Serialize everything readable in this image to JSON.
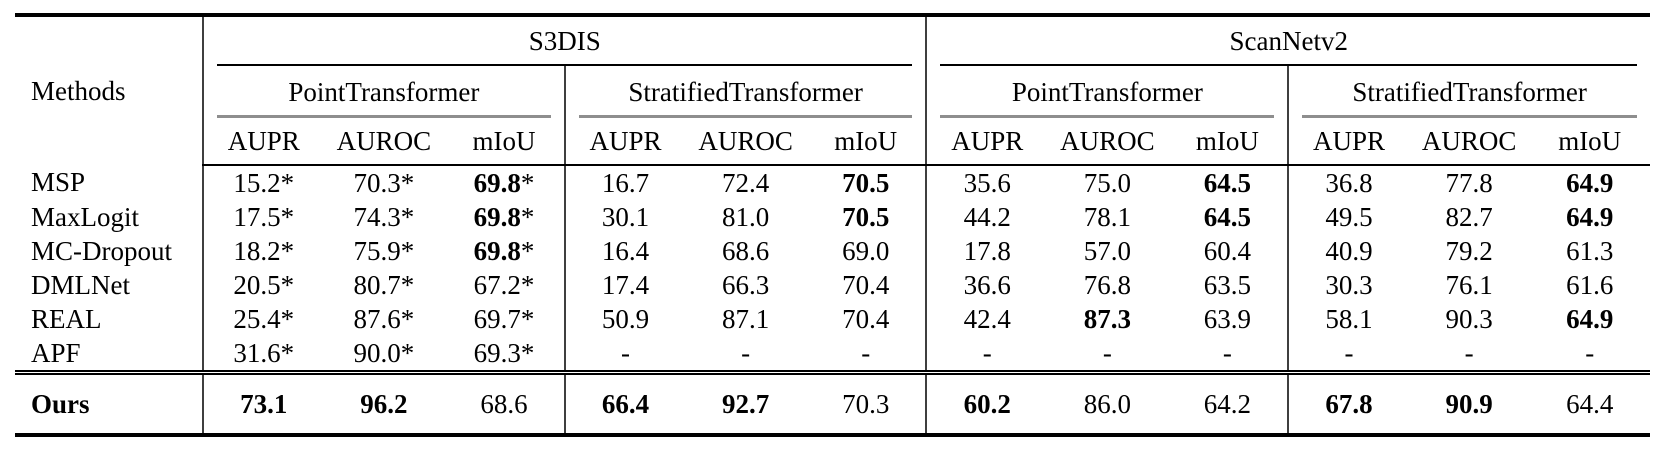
{
  "table": {
    "row_header_label": "Methods",
    "datasets": [
      {
        "label": "S3DIS",
        "backbones": [
          "PointTransformer",
          "StratifiedTransformer"
        ]
      },
      {
        "label": "ScanNetv2",
        "backbones": [
          "PointTransformer",
          "StratifiedTransformer"
        ]
      }
    ],
    "metrics": [
      "AUPR",
      "AUROC",
      "mIoU"
    ],
    "rows": [
      {
        "method": "MSP",
        "cells": [
          {
            "v": "15.2",
            "star": true
          },
          {
            "v": "70.3",
            "star": true
          },
          {
            "v": "69.8",
            "star": true,
            "bold": true
          },
          {
            "v": "16.7"
          },
          {
            "v": "72.4"
          },
          {
            "v": "70.5",
            "bold": true
          },
          {
            "v": "35.6"
          },
          {
            "v": "75.0"
          },
          {
            "v": "64.5",
            "bold": true
          },
          {
            "v": "36.8"
          },
          {
            "v": "77.8"
          },
          {
            "v": "64.9",
            "bold": true
          }
        ]
      },
      {
        "method": "MaxLogit",
        "cells": [
          {
            "v": "17.5",
            "star": true
          },
          {
            "v": "74.3",
            "star": true
          },
          {
            "v": "69.8",
            "star": true,
            "bold": true
          },
          {
            "v": "30.1"
          },
          {
            "v": "81.0"
          },
          {
            "v": "70.5",
            "bold": true
          },
          {
            "v": "44.2"
          },
          {
            "v": "78.1"
          },
          {
            "v": "64.5",
            "bold": true
          },
          {
            "v": "49.5"
          },
          {
            "v": "82.7"
          },
          {
            "v": "64.9",
            "bold": true
          }
        ]
      },
      {
        "method": "MC-Dropout",
        "cells": [
          {
            "v": "18.2",
            "star": true
          },
          {
            "v": "75.9",
            "star": true
          },
          {
            "v": "69.8",
            "star": true,
            "bold": true
          },
          {
            "v": "16.4"
          },
          {
            "v": "68.6"
          },
          {
            "v": "69.0"
          },
          {
            "v": "17.8"
          },
          {
            "v": "57.0"
          },
          {
            "v": "60.4"
          },
          {
            "v": "40.9"
          },
          {
            "v": "79.2"
          },
          {
            "v": "61.3"
          }
        ]
      },
      {
        "method": "DMLNet",
        "cells": [
          {
            "v": "20.5",
            "star": true
          },
          {
            "v": "80.7",
            "star": true
          },
          {
            "v": "67.2",
            "star": true
          },
          {
            "v": "17.4"
          },
          {
            "v": "66.3"
          },
          {
            "v": "70.4"
          },
          {
            "v": "36.6"
          },
          {
            "v": "76.8"
          },
          {
            "v": "63.5"
          },
          {
            "v": "30.3"
          },
          {
            "v": "76.1"
          },
          {
            "v": "61.6"
          }
        ]
      },
      {
        "method": "REAL",
        "cells": [
          {
            "v": "25.4",
            "star": true
          },
          {
            "v": "87.6",
            "star": true
          },
          {
            "v": "69.7",
            "star": true
          },
          {
            "v": "50.9"
          },
          {
            "v": "87.1"
          },
          {
            "v": "70.4"
          },
          {
            "v": "42.4"
          },
          {
            "v": "87.3",
            "bold": true
          },
          {
            "v": "63.9"
          },
          {
            "v": "58.1"
          },
          {
            "v": "90.3"
          },
          {
            "v": "64.9",
            "bold": true
          }
        ]
      },
      {
        "method": "APF",
        "cells": [
          {
            "v": "31.6",
            "star": true
          },
          {
            "v": "90.0",
            "star": true
          },
          {
            "v": "69.3",
            "star": true
          },
          {
            "v": "-"
          },
          {
            "v": "-"
          },
          {
            "v": "-"
          },
          {
            "v": "-"
          },
          {
            "v": "-"
          },
          {
            "v": "-"
          },
          {
            "v": "-"
          },
          {
            "v": "-"
          },
          {
            "v": "-"
          }
        ]
      }
    ],
    "footer_row": {
      "method": "Ours",
      "bold": true,
      "cells": [
        {
          "v": "73.1",
          "bold": true
        },
        {
          "v": "96.2",
          "bold": true
        },
        {
          "v": "68.6"
        },
        {
          "v": "66.4",
          "bold": true
        },
        {
          "v": "92.7",
          "bold": true
        },
        {
          "v": "70.3"
        },
        {
          "v": "60.2",
          "bold": true
        },
        {
          "v": "86.0"
        },
        {
          "v": "64.2"
        },
        {
          "v": "67.8",
          "bold": true
        },
        {
          "v": "90.9",
          "bold": true
        },
        {
          "v": "64.4"
        }
      ]
    }
  },
  "colors": {
    "rule_black": "#000000",
    "cmidrule_gray": "#8e8e8e",
    "separator_gray": "#3f3f3f",
    "text": "#000000",
    "background": "#ffffff"
  }
}
